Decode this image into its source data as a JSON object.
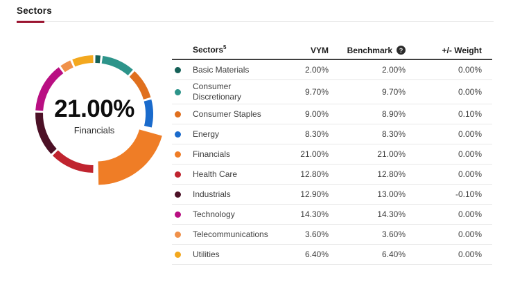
{
  "page": {
    "title": "Sectors"
  },
  "donut": {
    "center_value": "21.00%",
    "center_label": "Financials"
  },
  "table": {
    "headers": {
      "sector": "Sectors",
      "sector_sup": "5",
      "vym": "VYM",
      "benchmark": "Benchmark",
      "help": "?",
      "weight": "+/- Weight"
    },
    "rows": [
      {
        "label": "Basic Materials",
        "vym": "2.00%",
        "benchmark": "2.00%",
        "weight": "0.00%"
      },
      {
        "label": "Consumer Discretionary",
        "vym": "9.70%",
        "benchmark": "9.70%",
        "weight": "0.00%"
      },
      {
        "label": "Consumer Staples",
        "vym": "9.00%",
        "benchmark": "8.90%",
        "weight": "0.10%"
      },
      {
        "label": "Energy",
        "vym": "8.30%",
        "benchmark": "8.30%",
        "weight": "0.00%"
      },
      {
        "label": "Financials",
        "vym": "21.00%",
        "benchmark": "21.00%",
        "weight": "0.00%"
      },
      {
        "label": "Health Care",
        "vym": "12.80%",
        "benchmark": "12.80%",
        "weight": "0.00%"
      },
      {
        "label": "Industrials",
        "vym": "12.90%",
        "benchmark": "13.00%",
        "weight": "-0.10%"
      },
      {
        "label": "Technology",
        "vym": "14.30%",
        "benchmark": "14.30%",
        "weight": "0.00%"
      },
      {
        "label": "Telecommunications",
        "vym": "3.60%",
        "benchmark": "3.60%",
        "weight": "0.00%"
      },
      {
        "label": "Utilities",
        "vym": "6.40%",
        "benchmark": "6.40%",
        "weight": "0.00%"
      }
    ]
  },
  "chart_data": {
    "type": "pie",
    "subtype": "donut",
    "title": "Sectors",
    "categories": [
      "Basic Materials",
      "Consumer Discretionary",
      "Consumer Staples",
      "Energy",
      "Financials",
      "Health Care",
      "Industrials",
      "Technology",
      "Telecommunications",
      "Utilities"
    ],
    "series": [
      {
        "name": "VYM",
        "values": [
          2.0,
          9.7,
          9.0,
          8.3,
          21.0,
          12.8,
          12.9,
          14.3,
          3.6,
          6.4
        ]
      },
      {
        "name": "Benchmark",
        "values": [
          2.0,
          9.7,
          8.9,
          8.3,
          21.0,
          12.8,
          13.0,
          14.3,
          3.6,
          6.4
        ]
      }
    ],
    "colors": [
      "#156158",
      "#2d948a",
      "#e0701e",
      "#1a6bcc",
      "#ef7d26",
      "#c0242f",
      "#4c1126",
      "#b90f82",
      "#f0914a",
      "#f3a81e"
    ],
    "highlighted_category": "Financials",
    "center_label": {
      "value": "21.00%",
      "label": "Financials"
    },
    "start_angle_deg": 0,
    "direction": "clockwise",
    "legend_position": "none",
    "accent_underline_color": "#9b1430"
  }
}
